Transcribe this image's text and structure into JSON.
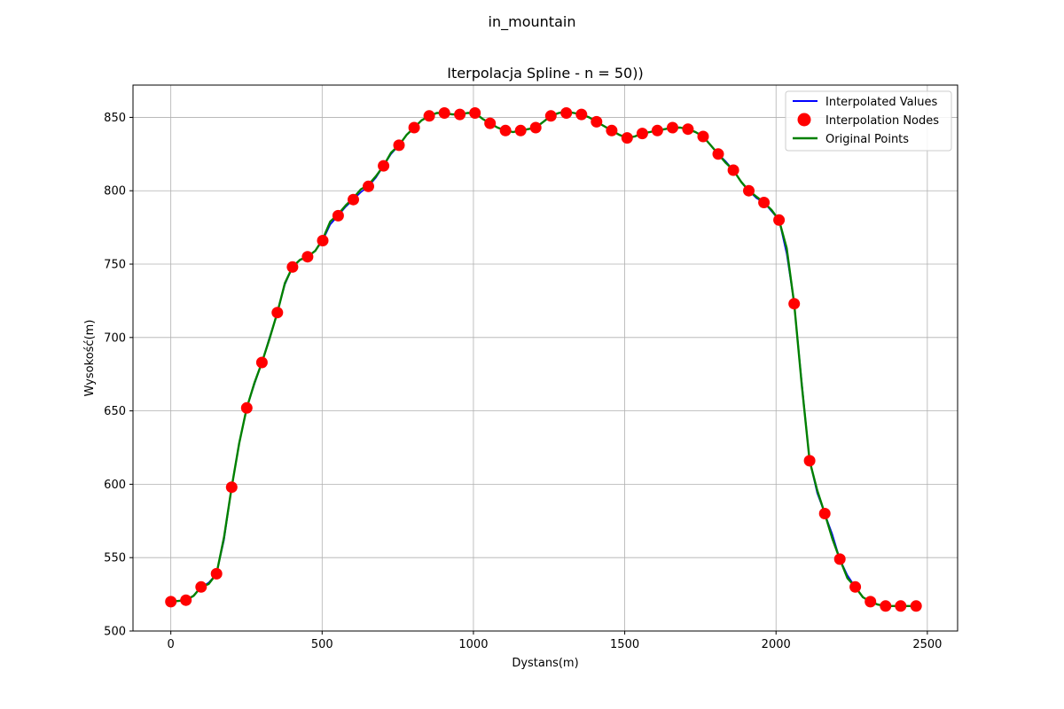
{
  "figure": {
    "suptitle": "in_mountain"
  },
  "chart_data": {
    "type": "line",
    "title": "Iterpolacja Spline - n = 50))",
    "xlabel": "Dystans(m)",
    "ylabel": "Wysokość(m)",
    "xlim": [
      -125,
      2600
    ],
    "ylim": [
      500,
      872
    ],
    "xticks": [
      0,
      500,
      1000,
      1500,
      2000,
      2500
    ],
    "yticks": [
      500,
      550,
      600,
      650,
      700,
      750,
      800,
      850
    ],
    "grid": true,
    "legend_position": "top-right",
    "legend": [
      {
        "label": "Interpolated Values",
        "kind": "line",
        "color": "#0000ff"
      },
      {
        "label": "Interpolation Nodes",
        "kind": "marker",
        "color": "#ff0000"
      },
      {
        "label": "Original Points",
        "kind": "line",
        "color": "#008000"
      }
    ],
    "series": [
      {
        "name": "Interpolation Nodes",
        "x": [
          0,
          50,
          100,
          151,
          201,
          251,
          301,
          352,
          402,
          452,
          502,
          553,
          603,
          653,
          703,
          754,
          804,
          854,
          904,
          955,
          1005,
          1055,
          1106,
          1156,
          1206,
          1256,
          1307,
          1357,
          1407,
          1457,
          1508,
          1558,
          1608,
          1658,
          1709,
          1759,
          1809,
          1859,
          1910,
          1960,
          2010,
          2060,
          2111,
          2161,
          2211,
          2262,
          2312,
          2362,
          2412,
          2463
        ],
        "y": [
          520,
          521,
          530,
          539,
          598,
          652,
          683,
          717,
          748,
          755,
          766,
          783,
          794,
          803,
          817,
          831,
          843,
          851,
          853,
          852,
          853,
          846,
          841,
          841,
          843,
          851,
          853,
          852,
          847,
          841,
          836,
          839,
          841,
          843,
          842,
          837,
          825,
          814,
          800,
          792,
          780,
          723,
          616,
          580,
          549,
          530,
          520,
          517,
          517,
          517
        ]
      },
      {
        "name": "Interpolated Values",
        "x": [
          0,
          50,
          75,
          100,
          125,
          151,
          176,
          201,
          226,
          251,
          276,
          301,
          326,
          352,
          377,
          402,
          427,
          452,
          477,
          502,
          527,
          553,
          578,
          603,
          628,
          653,
          678,
          703,
          728,
          754,
          779,
          804,
          829,
          854,
          879,
          904,
          930,
          955,
          980,
          1005,
          1030,
          1055,
          1080,
          1106,
          1131,
          1156,
          1181,
          1206,
          1231,
          1256,
          1282,
          1307,
          1332,
          1357,
          1382,
          1407,
          1432,
          1457,
          1483,
          1508,
          1533,
          1558,
          1583,
          1608,
          1633,
          1658,
          1684,
          1709,
          1734,
          1759,
          1784,
          1809,
          1834,
          1859,
          1885,
          1910,
          1935,
          1960,
          1985,
          2010,
          2035,
          2060,
          2085,
          2111,
          2136,
          2161,
          2186,
          2211,
          2236,
          2262,
          2287,
          2312,
          2337,
          2362,
          2387,
          2412,
          2438,
          2463
        ],
        "y": [
          520,
          521,
          524,
          530,
          533,
          539,
          562,
          598,
          628,
          652,
          668,
          683,
          700,
          717,
          736,
          748,
          753,
          755,
          759,
          766,
          777,
          783,
          789,
          794,
          799,
          803,
          809,
          817,
          825,
          831,
          838,
          843,
          848,
          851,
          853,
          853,
          852,
          852,
          853,
          853,
          849,
          846,
          843,
          841,
          840,
          841,
          842,
          843,
          847,
          851,
          853,
          853,
          853,
          852,
          850,
          847,
          844,
          841,
          838,
          836,
          837,
          839,
          840,
          841,
          842,
          843,
          843,
          842,
          840,
          837,
          831,
          825,
          820,
          814,
          806,
          800,
          795,
          792,
          786,
          780,
          757,
          723,
          670,
          616,
          594,
          580,
          566,
          549,
          538,
          530,
          523,
          520,
          518,
          517,
          517,
          517,
          517,
          517
        ]
      },
      {
        "name": "Original Points",
        "x": [
          0,
          50,
          75,
          100,
          125,
          151,
          176,
          201,
          226,
          251,
          276,
          301,
          326,
          352,
          377,
          402,
          427,
          452,
          477,
          502,
          527,
          553,
          578,
          603,
          628,
          653,
          678,
          703,
          728,
          754,
          779,
          804,
          829,
          854,
          879,
          904,
          930,
          955,
          980,
          1005,
          1030,
          1055,
          1080,
          1106,
          1131,
          1156,
          1181,
          1206,
          1231,
          1256,
          1282,
          1307,
          1332,
          1357,
          1382,
          1407,
          1432,
          1457,
          1483,
          1508,
          1533,
          1558,
          1583,
          1608,
          1633,
          1658,
          1684,
          1709,
          1734,
          1759,
          1784,
          1809,
          1834,
          1859,
          1885,
          1910,
          1935,
          1960,
          1985,
          2010,
          2035,
          2060,
          2085,
          2111,
          2136,
          2161,
          2186,
          2211,
          2236,
          2262,
          2287,
          2312,
          2337,
          2362,
          2387,
          2412,
          2438,
          2463
        ],
        "y": [
          520,
          521,
          524,
          530,
          532,
          539,
          564,
          598,
          628,
          652,
          669,
          683,
          699,
          717,
          737,
          748,
          753,
          755,
          759,
          767,
          779,
          784,
          790,
          795,
          801,
          804,
          810,
          817,
          826,
          831,
          838,
          843,
          848,
          851,
          853,
          853,
          852,
          852,
          853,
          853,
          849,
          846,
          843,
          841,
          840,
          841,
          842,
          843,
          847,
          851,
          853,
          854,
          853,
          852,
          850,
          847,
          844,
          841,
          838,
          836,
          837,
          839,
          840,
          841,
          842,
          843,
          843,
          842,
          840,
          837,
          831,
          825,
          819,
          814,
          806,
          800,
          796,
          792,
          787,
          780,
          761,
          723,
          668,
          616,
          596,
          580,
          563,
          549,
          536,
          530,
          523,
          520,
          518,
          517,
          517,
          517,
          517,
          517
        ]
      }
    ]
  }
}
